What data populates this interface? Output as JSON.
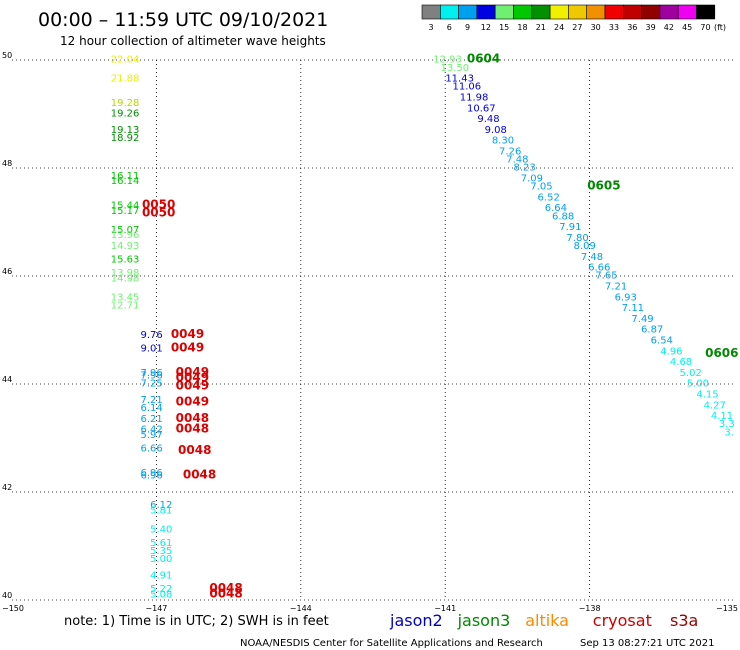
{
  "header": {
    "title": "00:00 – 11:59 UTC 09/10/2021",
    "subtitle": "12 hour collection of altimeter wave heights"
  },
  "legend": {
    "swatches": [
      {
        "label": "3",
        "color": "#808080"
      },
      {
        "label": "6",
        "color": "#00f0f0"
      },
      {
        "label": "9",
        "color": "#00a0f0"
      },
      {
        "label": "12",
        "color": "#0000e0"
      },
      {
        "label": "15",
        "color": "#70f070"
      },
      {
        "label": "18",
        "color": "#00c800"
      },
      {
        "label": "21",
        "color": "#009000"
      },
      {
        "label": "24",
        "color": "#f0f000"
      },
      {
        "label": "27",
        "color": "#f0c800"
      },
      {
        "label": "30",
        "color": "#f09000"
      },
      {
        "label": "33",
        "color": "#f00000"
      },
      {
        "label": "36",
        "color": "#c00000"
      },
      {
        "label": "39",
        "color": "#900000"
      },
      {
        "label": "42",
        "color": "#a000a0"
      },
      {
        "label": "45",
        "color": "#f000f0"
      },
      {
        "label": "70",
        "color": "#000000"
      }
    ],
    "unit": "(ft)"
  },
  "axes": {
    "lat_ticks": [
      "50",
      "48",
      "46",
      "44",
      "42",
      "40"
    ],
    "lon_ticks": [
      "−150",
      "−147",
      "−144",
      "−141",
      "−138",
      "−135"
    ]
  },
  "chart_data": {
    "type": "scatter",
    "x_range": [
      -150,
      -135
    ],
    "y_range": [
      40,
      50
    ],
    "xlabel": "",
    "ylabel": "",
    "grid": true,
    "series": [
      {
        "pass": "0050",
        "color": "#dd0000",
        "points": [
          {
            "lon": -147.65,
            "lat": 49.95,
            "v": "22.04",
            "c": "#f0f000"
          },
          {
            "lon": -147.65,
            "lat": 49.6,
            "v": "21.88",
            "c": "#f0f000"
          },
          {
            "lon": -147.65,
            "lat": 49.15,
            "v": "19.28",
            "c": "#b4d800"
          },
          {
            "lon": -147.65,
            "lat": 48.95,
            "v": "19.26",
            "c": "#009000"
          },
          {
            "lon": -147.65,
            "lat": 48.65,
            "v": "19.13",
            "c": "#009000"
          },
          {
            "lon": -147.65,
            "lat": 48.5,
            "v": "18.92",
            "c": "#009000"
          },
          {
            "lon": -147.65,
            "lat": 47.8,
            "v": "16.11",
            "c": "#00c800"
          },
          {
            "lon": -147.65,
            "lat": 47.7,
            "v": "16.14",
            "c": "#00c800"
          },
          {
            "lon": -147.65,
            "lat": 47.25,
            "v": "15.44",
            "c": "#00c800"
          },
          {
            "lon": -147.65,
            "lat": 47.15,
            "v": "15.17",
            "c": "#00c800"
          },
          {
            "lon": -147.65,
            "lat": 46.8,
            "v": "15.07",
            "c": "#00c800"
          },
          {
            "lon": -147.65,
            "lat": 46.7,
            "v": "13.96",
            "c": "#70f070"
          },
          {
            "lon": -147.65,
            "lat": 46.5,
            "v": "14.93",
            "c": "#70f070"
          },
          {
            "lon": -147.65,
            "lat": 46.25,
            "v": "15.63",
            "c": "#00c800"
          },
          {
            "lon": -147.65,
            "lat": 46.0,
            "v": "13.98",
            "c": "#70f070"
          },
          {
            "lon": -147.65,
            "lat": 45.9,
            "v": "14.98",
            "c": "#70f070"
          },
          {
            "lon": -147.65,
            "lat": 45.55,
            "v": "13.45",
            "c": "#70f070"
          },
          {
            "lon": -147.65,
            "lat": 45.4,
            "v": "12.71",
            "c": "#70f070"
          }
        ]
      },
      {
        "pass": "0049",
        "color": "#dd0000",
        "points": [
          {
            "lon": -147.1,
            "lat": 44.85,
            "v": "9.76",
            "c": "#0000e0"
          },
          {
            "lon": -147.1,
            "lat": 44.6,
            "v": "9.01",
            "c": "#0000e0"
          },
          {
            "lon": -147.1,
            "lat": 44.15,
            "v": "7.96",
            "c": "#00a0f0"
          },
          {
            "lon": -147.1,
            "lat": 44.1,
            "v": "7.96",
            "c": "#00a0f0"
          },
          {
            "lon": -147.1,
            "lat": 43.95,
            "v": "7.25",
            "c": "#00a0f0"
          },
          {
            "lon": -147.1,
            "lat": 43.65,
            "v": "7.21",
            "c": "#00a0f0"
          },
          {
            "lon": -147.1,
            "lat": 43.5,
            "v": "6.14",
            "c": "#00a0f0"
          },
          {
            "lon": -147.1,
            "lat": 43.3,
            "v": "6.21",
            "c": "#00a0f0"
          },
          {
            "lon": -147.1,
            "lat": 43.1,
            "v": "6.42",
            "c": "#00a0f0"
          },
          {
            "lon": -147.1,
            "lat": 43.0,
            "v": "5.97",
            "c": "#00a0f0"
          },
          {
            "lon": -147.1,
            "lat": 42.75,
            "v": "6.66",
            "c": "#00a0f0"
          },
          {
            "lon": -147.1,
            "lat": 42.3,
            "v": "6.96",
            "c": "#00a0f0"
          },
          {
            "lon": -147.1,
            "lat": 42.25,
            "v": "6.96",
            "c": "#00a0f0"
          }
        ]
      },
      {
        "pass": "0048",
        "color": "#dd0000",
        "points": [
          {
            "lon": -146.9,
            "lat": 41.7,
            "v": "6.12",
            "c": "#00a0f0"
          },
          {
            "lon": -146.9,
            "lat": 41.6,
            "v": "5.81",
            "c": "#00f0f0"
          },
          {
            "lon": -146.9,
            "lat": 41.25,
            "v": "5.40",
            "c": "#00f0f0"
          },
          {
            "lon": -146.9,
            "lat": 41.0,
            "v": "5.61",
            "c": "#00f0f0"
          },
          {
            "lon": -146.9,
            "lat": 40.85,
            "v": "5.35",
            "c": "#00f0f0"
          },
          {
            "lon": -146.9,
            "lat": 40.7,
            "v": "5.00",
            "c": "#00f0f0"
          },
          {
            "lon": -146.9,
            "lat": 40.4,
            "v": "4.91",
            "c": "#00f0f0"
          },
          {
            "lon": -146.9,
            "lat": 40.15,
            "v": "5.22",
            "c": "#00f0f0"
          },
          {
            "lon": -146.9,
            "lat": 40.05,
            "v": "5.08",
            "c": "#00f0f0"
          }
        ]
      },
      {
        "pass": "0604",
        "color": "#008800",
        "points": [
          {
            "lon": -140.95,
            "lat": 49.95,
            "v": "12.93",
            "c": "#70f070"
          },
          {
            "lon": -140.8,
            "lat": 49.8,
            "v": "13.50",
            "c": "#70f070"
          },
          {
            "lon": -140.7,
            "lat": 49.6,
            "v": "11.43",
            "c": "#0000e0"
          },
          {
            "lon": -140.55,
            "lat": 49.45,
            "v": "11.06",
            "c": "#0000e0"
          },
          {
            "lon": -140.4,
            "lat": 49.25,
            "v": "11.98",
            "c": "#0000e0"
          },
          {
            "lon": -140.25,
            "lat": 49.05,
            "v": "10.67",
            "c": "#0000e0"
          },
          {
            "lon": -140.1,
            "lat": 48.85,
            "v": "9.48",
            "c": "#0000e0"
          },
          {
            "lon": -139.95,
            "lat": 48.65,
            "v": "9.08",
            "c": "#0000e0"
          },
          {
            "lon": -139.8,
            "lat": 48.45,
            "v": "8.30",
            "c": "#00a0f0"
          },
          {
            "lon": -139.65,
            "lat": 48.25,
            "v": "7.26",
            "c": "#00a0f0"
          },
          {
            "lon": -139.5,
            "lat": 48.1,
            "v": "7.48",
            "c": "#00a0f0"
          },
          {
            "lon": -139.35,
            "lat": 47.95,
            "v": "8.23",
            "c": "#00a0f0"
          },
          {
            "lon": -139.2,
            "lat": 47.75,
            "v": "7.09",
            "c": "#00a0f0"
          }
        ]
      },
      {
        "pass": "0605",
        "color": "#008800",
        "points": [
          {
            "lon": -139.0,
            "lat": 47.6,
            "v": "7.05",
            "c": "#00a0f0"
          },
          {
            "lon": -138.85,
            "lat": 47.4,
            "v": "6.52",
            "c": "#00a0f0"
          },
          {
            "lon": -138.7,
            "lat": 47.2,
            "v": "6.64",
            "c": "#00a0f0"
          },
          {
            "lon": -138.55,
            "lat": 47.05,
            "v": "6.88",
            "c": "#00a0f0"
          },
          {
            "lon": -138.4,
            "lat": 46.85,
            "v": "7.91",
            "c": "#00a0f0"
          },
          {
            "lon": -138.25,
            "lat": 46.65,
            "v": "7.80",
            "c": "#00a0f0"
          },
          {
            "lon": -138.1,
            "lat": 46.5,
            "v": "8.09",
            "c": "#00a0f0"
          },
          {
            "lon": -137.95,
            "lat": 46.3,
            "v": "7.48",
            "c": "#00a0f0"
          },
          {
            "lon": -137.8,
            "lat": 46.1,
            "v": "6.66",
            "c": "#00a0f0"
          },
          {
            "lon": -137.65,
            "lat": 45.95,
            "v": "7.65",
            "c": "#00a0f0"
          },
          {
            "lon": -137.45,
            "lat": 45.75,
            "v": "7.21",
            "c": "#00a0f0"
          },
          {
            "lon": -137.25,
            "lat": 45.55,
            "v": "6.93",
            "c": "#00a0f0"
          },
          {
            "lon": -137.1,
            "lat": 45.35,
            "v": "7.11",
            "c": "#00a0f0"
          },
          {
            "lon": -136.9,
            "lat": 45.15,
            "v": "7.49",
            "c": "#00a0f0"
          },
          {
            "lon": -136.7,
            "lat": 44.95,
            "v": "6.87",
            "c": "#00a0f0"
          },
          {
            "lon": -136.5,
            "lat": 44.75,
            "v": "6.54",
            "c": "#00a0f0"
          }
        ]
      },
      {
        "pass": "0606",
        "color": "#008800",
        "points": [
          {
            "lon": -136.3,
            "lat": 44.55,
            "v": "4.96",
            "c": "#00f0f0"
          },
          {
            "lon": -136.1,
            "lat": 44.35,
            "v": "4.68",
            "c": "#00f0f0"
          },
          {
            "lon": -135.9,
            "lat": 44.15,
            "v": "5.02",
            "c": "#00f0f0"
          },
          {
            "lon": -135.75,
            "lat": 43.95,
            "v": "5.00",
            "c": "#00f0f0"
          },
          {
            "lon": -135.55,
            "lat": 43.75,
            "v": "4.15",
            "c": "#00f0f0"
          },
          {
            "lon": -135.4,
            "lat": 43.55,
            "v": "4.27",
            "c": "#00f0f0"
          },
          {
            "lon": -135.25,
            "lat": 43.35,
            "v": "4.11",
            "c": "#00f0f0"
          },
          {
            "lon": -135.15,
            "lat": 43.2,
            "v": "3.3",
            "c": "#00f0f0"
          },
          {
            "lon": -135.1,
            "lat": 43.05,
            "v": "3.",
            "c": "#00f0f0"
          }
        ]
      }
    ],
    "pass_labels": [
      {
        "lon": -140.55,
        "lat": 49.95,
        "text": "0604",
        "color": "#008800"
      },
      {
        "lon": -138.05,
        "lat": 47.6,
        "text": "0605",
        "color": "#008800"
      },
      {
        "lon": -135.6,
        "lat": 44.5,
        "text": "0606",
        "color": "#008800"
      },
      {
        "lon": -147.3,
        "lat": 47.25,
        "text": "0050",
        "color": "#dd0000"
      },
      {
        "lon": -147.3,
        "lat": 47.1,
        "text": "0050",
        "color": "#dd0000"
      },
      {
        "lon": -146.7,
        "lat": 44.85,
        "text": "0049",
        "color": "#dd0000"
      },
      {
        "lon": -146.7,
        "lat": 44.6,
        "text": "0049",
        "color": "#dd0000"
      },
      {
        "lon": -146.6,
        "lat": 44.15,
        "text": "0049",
        "color": "#dd0000"
      },
      {
        "lon": -146.6,
        "lat": 44.05,
        "text": "0049",
        "color": "#dd0000"
      },
      {
        "lon": -146.6,
        "lat": 43.9,
        "text": "0049",
        "color": "#dd0000"
      },
      {
        "lon": -146.6,
        "lat": 43.6,
        "text": "0049",
        "color": "#dd0000"
      },
      {
        "lon": -146.6,
        "lat": 43.3,
        "text": "0048",
        "color": "#dd0000"
      },
      {
        "lon": -146.6,
        "lat": 43.1,
        "text": "0048",
        "color": "#dd0000"
      },
      {
        "lon": -146.55,
        "lat": 42.7,
        "text": "0048",
        "color": "#dd0000"
      },
      {
        "lon": -146.45,
        "lat": 42.25,
        "text": "0048",
        "color": "#dd0000"
      },
      {
        "lon": -145.9,
        "lat": 40.15,
        "text": "0048",
        "color": "#dd0000"
      },
      {
        "lon": -145.9,
        "lat": 40.05,
        "text": "0048",
        "color": "#dd0000"
      }
    ]
  },
  "footer": {
    "note": "note: 1) Time is in UTC; 2) SWH is in feet",
    "satellites": [
      {
        "name": "jason2",
        "color": "#0000cc"
      },
      {
        "name": "jason3",
        "color": "#008800"
      },
      {
        "name": "altika",
        "color": "#ff8800"
      },
      {
        "name": "cryosat",
        "color": "#cc0000"
      },
      {
        "name": "s3a",
        "color": "#990000"
      }
    ],
    "credit": "NOAA/NESDIS Center for Satellite Applications and Research",
    "timestamp": "Sep 13 08:27:21 UTC 2021"
  }
}
